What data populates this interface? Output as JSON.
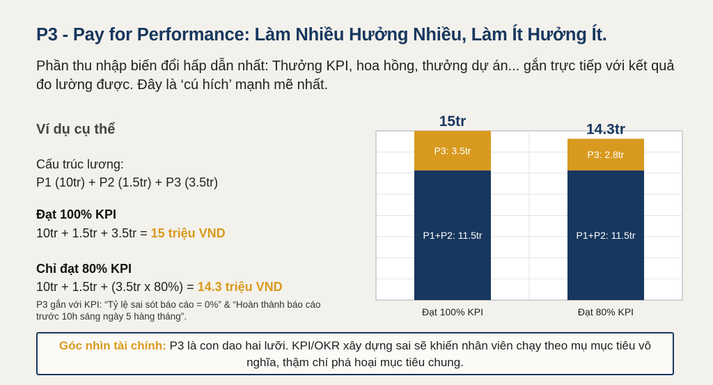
{
  "title": "P3 - Pay for Performance: Làm Nhiều Hưởng Nhiều, Làm Ít Hưởng Ít.",
  "lead": "Phần thu nhập biến đổi hấp dẫn nhất: Thưởng KPI, hoa hồng, thưởng dự án... gắn trực tiếp với kết quả đo lường được. Đây là ‘cú hích’ mạnh mẽ nhất.",
  "example": {
    "heading": "Ví dụ cụ thể",
    "structure_label": "Cấu trúc lương:",
    "structure_formula": "P1 (10tr) + P2 (1.5tr) + P3 (3.5tr)",
    "case1": {
      "title": "Đạt 100% KPI",
      "formula": "10tr + 1.5tr + 3.5tr = ",
      "result": "15 triệu VND"
    },
    "case2": {
      "title": "Chỉ đạt 80% KPI",
      "formula": "10tr + 1.5tr + (3.5tr x 80%) = ",
      "result": "14.3 triệu VND"
    },
    "note": "P3 gắn với KPI: “Tỷ lệ sai sót báo cáo = 0%” & “Hoàn thành báo cáo trước 10h sáng ngày 5 hàng tháng”."
  },
  "chart_data": {
    "type": "bar",
    "stacked": true,
    "categories": [
      "Đạt 100% KPI",
      "Đạt 80% KPI"
    ],
    "totals": [
      "15tr",
      "14.3tr"
    ],
    "series": [
      {
        "name": "P1+P2",
        "values": [
          11.5,
          11.5
        ],
        "labels": [
          "P1+P2: 11.5tr",
          "P1+P2: 11.5tr"
        ],
        "color": "#17375e"
      },
      {
        "name": "P3",
        "values": [
          3.5,
          2.8
        ],
        "labels": [
          "P3: 3.5tr",
          "P3: 2.8tr"
        ],
        "color": "#d89a1e"
      }
    ],
    "ylim": [
      0,
      15
    ],
    "grid": true
  },
  "callout": {
    "label": "Góc nhìn tài chính:",
    "text": " P3 là con dao hai lưỡi. KPI/OKR xây dựng sai sẽ khiến nhân viên chạy theo mụ mục tiêu vô nghĩa, thậm chí phá hoại mục tiêu chung."
  }
}
